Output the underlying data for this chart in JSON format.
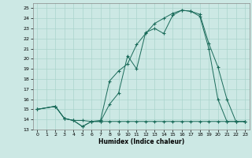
{
  "xlabel": "Humidex (Indice chaleur)",
  "bg_color": "#cce8e4",
  "line_color": "#1a6b5a",
  "grid_color": "#aad4cc",
  "xlim": [
    -0.5,
    23.5
  ],
  "ylim": [
    13,
    25.5
  ],
  "xticks": [
    0,
    1,
    2,
    3,
    4,
    5,
    6,
    7,
    8,
    9,
    10,
    11,
    12,
    13,
    14,
    15,
    16,
    17,
    18,
    19,
    20,
    21,
    22,
    23
  ],
  "yticks": [
    13,
    14,
    15,
    16,
    17,
    18,
    19,
    20,
    21,
    22,
    23,
    24,
    25
  ],
  "line1_x": [
    0,
    2,
    3,
    4,
    5,
    6,
    7,
    8,
    9,
    10,
    11,
    12,
    13,
    14,
    15,
    16,
    17,
    18,
    19,
    20,
    21,
    22,
    23
  ],
  "line1_y": [
    15,
    15.3,
    14.1,
    13.9,
    13.3,
    13.8,
    13.8,
    15.5,
    16.6,
    20.3,
    19.0,
    22.6,
    23.0,
    22.5,
    24.3,
    24.8,
    24.7,
    24.2,
    21.0,
    16.0,
    13.8,
    13.8,
    13.8
  ],
  "line2_x": [
    0,
    2,
    3,
    4,
    5,
    6,
    7,
    8,
    9,
    10,
    11,
    12,
    13,
    14,
    15,
    16,
    17,
    18,
    19,
    20,
    21,
    22,
    23
  ],
  "line2_y": [
    15,
    15.3,
    14.1,
    13.9,
    13.9,
    13.8,
    13.9,
    17.8,
    18.8,
    19.5,
    21.4,
    22.5,
    23.5,
    24.0,
    24.5,
    24.8,
    24.7,
    24.4,
    21.5,
    19.2,
    16.0,
    13.8,
    13.8
  ],
  "line3_x": [
    0,
    2,
    3,
    4,
    5,
    6,
    7,
    8,
    9,
    10,
    11,
    12,
    13,
    14,
    15,
    16,
    17,
    18,
    19,
    20,
    21,
    22,
    23
  ],
  "line3_y": [
    15,
    15.3,
    14.1,
    13.9,
    13.3,
    13.8,
    13.8,
    13.8,
    13.8,
    13.8,
    13.8,
    13.8,
    13.8,
    13.8,
    13.8,
    13.8,
    13.8,
    13.8,
    13.8,
    13.8,
    13.8,
    13.8,
    13.8
  ]
}
